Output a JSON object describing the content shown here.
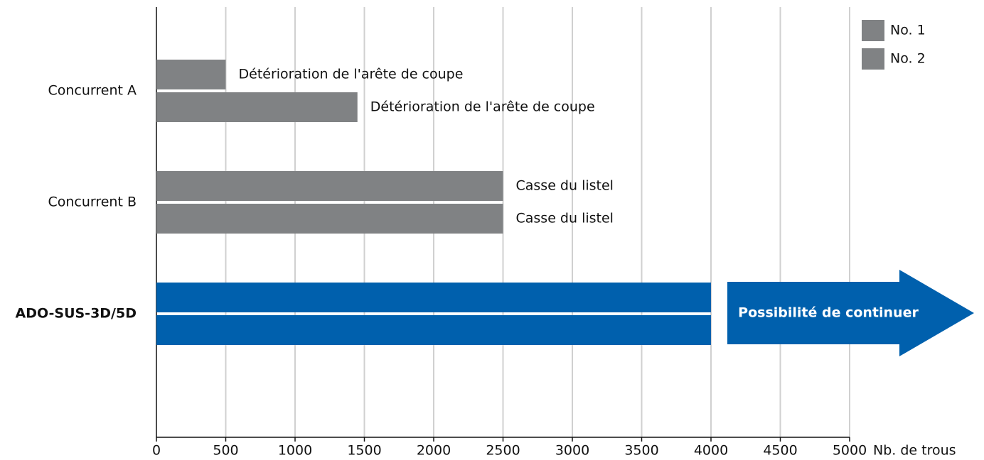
{
  "chart_data": {
    "type": "bar",
    "orientation": "horizontal",
    "categories": [
      "Concurrent A",
      "Concurrent B",
      "ADO-SUS-3D/5D"
    ],
    "series": [
      {
        "name": "No. 1",
        "color": "#808284",
        "colors": [
          "#808284",
          "#808284",
          "#0060ad"
        ],
        "values": [
          500,
          2500,
          4000
        ],
        "value_labels": [
          "Détérioration de l'arête de coupe",
          "Casse du listel",
          null
        ]
      },
      {
        "name": "No. 2",
        "color": "#808284",
        "colors": [
          "#808284",
          "#808284",
          "#0060ad"
        ],
        "values": [
          1450,
          2500,
          4000
        ],
        "value_labels": [
          "Détérioration de l'arête de coupe",
          "Casse du listel",
          null
        ]
      }
    ],
    "x_label": "Nb. de trous",
    "annotation": "Possibilité de continuer",
    "xlim": [
      0,
      5000
    ],
    "xticks": [
      0,
      500,
      1000,
      1500,
      2000,
      2500,
      3000,
      3500,
      4000,
      4500,
      5000
    ],
    "grid": true,
    "legend": "upper right"
  }
}
